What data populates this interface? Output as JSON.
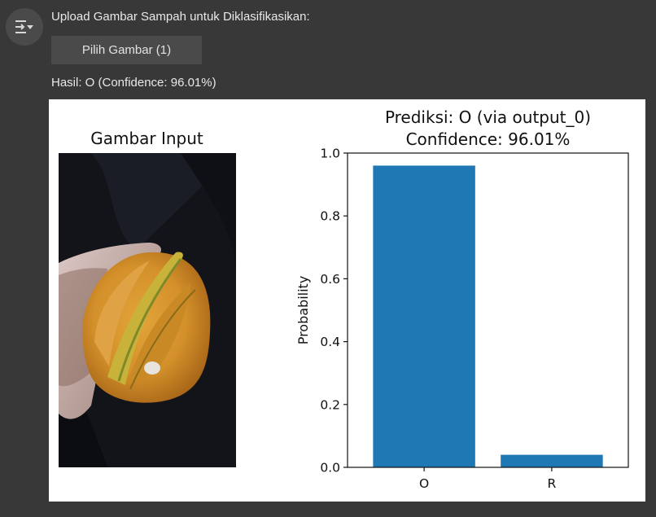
{
  "prompt_text": "Upload Gambar Sampah untuk Diklasifikasikan:",
  "upload_button_label": "Pilih Gambar (1)",
  "result_text": "Hasil: O (Confidence: 96.01%)",
  "toggle_icon": "output-collapse-icon",
  "figure": {
    "image_title": "Gambar Input",
    "image_subject": "starfruit-photo"
  },
  "chart_data": {
    "type": "bar",
    "title_line1": "Prediksi: O (via output_0)",
    "title_line2": "Confidence: 96.01%",
    "categories": [
      "O",
      "R"
    ],
    "values": [
      0.9601,
      0.0399
    ],
    "xlabel": "",
    "ylabel": "Probability",
    "ylim": [
      0,
      1.0
    ],
    "yticks": [
      "0.0",
      "0.2",
      "0.4",
      "0.6",
      "0.8",
      "1.0"
    ],
    "bar_color": "#1f77b4",
    "grid": false
  }
}
